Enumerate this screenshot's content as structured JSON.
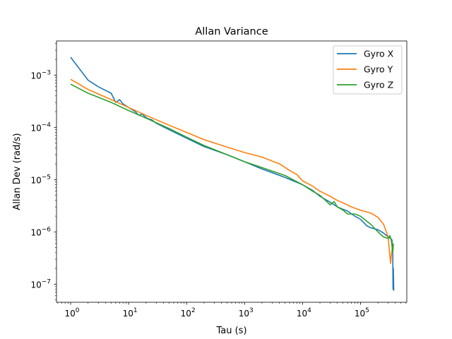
{
  "chart_data": {
    "type": "line",
    "title": "Allan Variance",
    "xlabel": "Tau (s)",
    "ylabel": "Allan Dev (rad/s)",
    "xscale": "log",
    "yscale": "log",
    "xlim": [
      0.57,
      630000
    ],
    "ylim": [
      4.5e-08,
      0.0045
    ],
    "x_ticks": [
      {
        "value": 1,
        "base": "10",
        "exp": "0"
      },
      {
        "value": 10,
        "base": "10",
        "exp": "1"
      },
      {
        "value": 100,
        "base": "10",
        "exp": "2"
      },
      {
        "value": 1000,
        "base": "10",
        "exp": "3"
      },
      {
        "value": 10000,
        "base": "10",
        "exp": "4"
      },
      {
        "value": 100000,
        "base": "10",
        "exp": "5"
      }
    ],
    "y_ticks": [
      {
        "value": 1e-07,
        "base": "10",
        "exp": "−7"
      },
      {
        "value": 1e-06,
        "base": "10",
        "exp": "−6"
      },
      {
        "value": 1e-05,
        "base": "10",
        "exp": "−5"
      },
      {
        "value": 0.0001,
        "base": "10",
        "exp": "−4"
      },
      {
        "value": 0.001,
        "base": "10",
        "exp": "−3"
      }
    ],
    "grid": false,
    "legend_position": "top-right",
    "series": [
      {
        "name": "Gyro X",
        "color": "#1f77b4",
        "x": [
          1,
          2,
          3,
          5,
          6,
          7,
          8,
          10,
          13,
          15,
          17,
          20,
          22,
          25,
          30,
          50,
          100,
          200,
          500,
          1000,
          2000,
          5000,
          10000,
          15000,
          20000,
          30000,
          40000,
          50000,
          60000,
          80000,
          100000,
          130000,
          150000,
          200000,
          250000,
          300000,
          330000,
          350000,
          360000,
          365000,
          370000,
          375000
        ],
        "y": [
          0.0022,
          0.0008,
          0.0006,
          0.00045,
          0.0003,
          0.00034,
          0.00028,
          0.00024,
          0.0002,
          0.00017,
          0.00018,
          0.000155,
          0.000145,
          0.00014,
          0.00012,
          9e-05,
          6.2e-05,
          4.3e-05,
          3e-05,
          2.2e-05,
          1.6e-05,
          1.1e-05,
          8e-06,
          6.2e-06,
          4.8e-06,
          3.7e-06,
          3e-06,
          2.7e-06,
          2.5e-06,
          2e-06,
          1.75e-06,
          1.3e-06,
          1.2e-06,
          1.1e-06,
          9.5e-07,
          8e-07,
          7.5e-07,
          7e-07,
          4e-07,
          8e-08,
          2e-07,
          7.5e-08
        ]
      },
      {
        "name": "Gyro Y",
        "color": "#ff7f0e",
        "x": [
          1,
          2,
          5,
          10,
          20,
          50,
          100,
          200,
          500,
          1000,
          2000,
          4000,
          6000,
          8000,
          10000,
          15000,
          20000,
          30000,
          40000,
          50000,
          70000,
          100000,
          150000,
          200000,
          250000,
          300000,
          330000,
          345000,
          355000
        ],
        "y": [
          0.00083,
          0.00053,
          0.00034,
          0.00024,
          0.00017,
          0.00011,
          8e-05,
          5.8e-05,
          4.2e-05,
          3.3e-05,
          2.7e-05,
          2e-05,
          1.5e-05,
          1.25e-05,
          9.5e-06,
          7.5e-06,
          6e-06,
          4.8e-06,
          4e-06,
          3.6e-06,
          3e-06,
          2.6e-06,
          2.3e-06,
          1.9e-06,
          1.4e-06,
          8e-07,
          2.5e-07,
          4e-07,
          5e-07
        ]
      },
      {
        "name": "Gyro Z",
        "color": "#2ca02c",
        "x": [
          1,
          2,
          5,
          10,
          20,
          50,
          100,
          200,
          500,
          1000,
          2000,
          5000,
          10000,
          15000,
          20000,
          25000,
          30000,
          35000,
          40000,
          50000,
          60000,
          80000,
          100000,
          150000,
          200000,
          250000,
          300000,
          320000,
          340000,
          350000,
          360000,
          370000
        ],
        "y": [
          0.00067,
          0.00045,
          0.0003,
          0.00021,
          0.00015,
          9.5e-05,
          6.5e-05,
          4.5e-05,
          3e-05,
          2.2e-05,
          1.7e-05,
          1.2e-05,
          8e-06,
          6e-06,
          5e-06,
          4e-06,
          3.3e-06,
          3.8e-06,
          3e-06,
          2.6e-06,
          2.2e-06,
          2.2e-06,
          2e-06,
          1.4e-06,
          1e-06,
          8e-07,
          7.5e-07,
          8.5e-07,
          7e-07,
          5.5e-07,
          4e-07,
          6e-07
        ]
      }
    ]
  }
}
